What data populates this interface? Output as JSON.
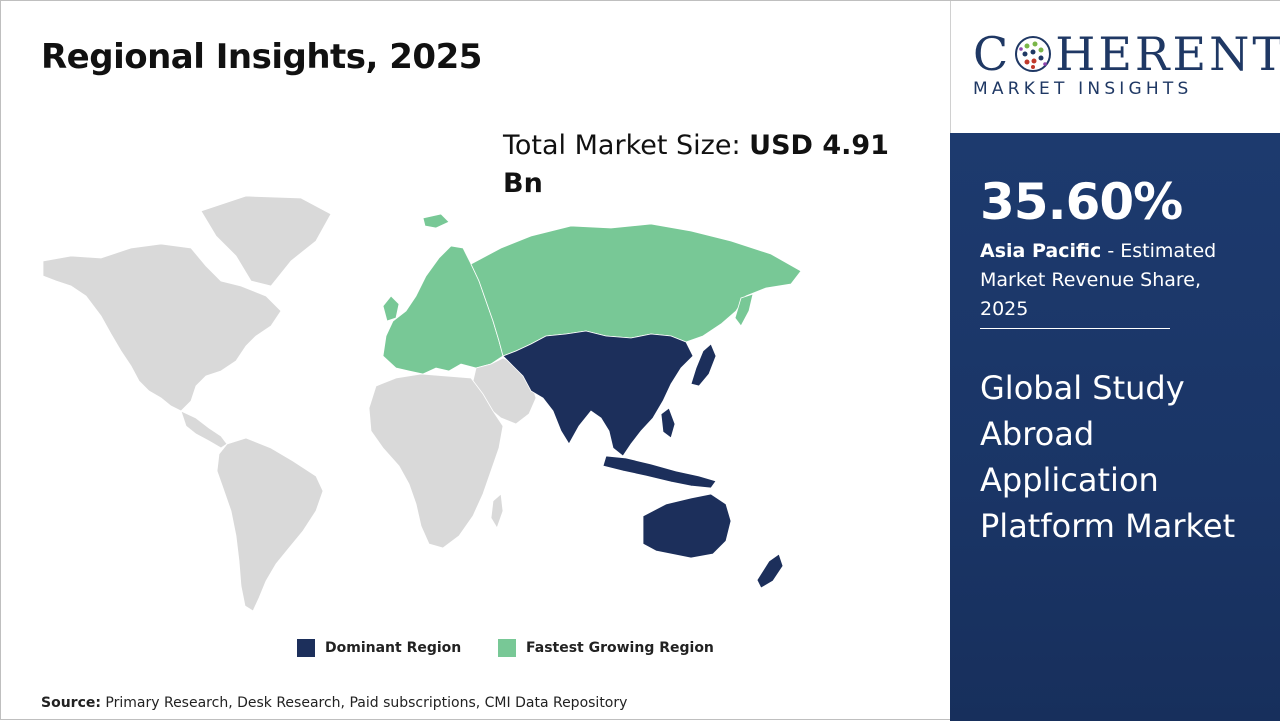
{
  "title": "Regional Insights, 2025",
  "market_size": {
    "label": "Total Market Size:",
    "value": "USD 4.91 Bn"
  },
  "map": {
    "regions": [
      {
        "name": "North America",
        "category": "other"
      },
      {
        "name": "Latin America",
        "category": "other"
      },
      {
        "name": "Europe",
        "category": "fastest"
      },
      {
        "name": "Russia & Central Asia",
        "category": "fastest"
      },
      {
        "name": "Middle East",
        "category": "other"
      },
      {
        "name": "Africa",
        "category": "other"
      },
      {
        "name": "Asia Pacific",
        "category": "dominant"
      }
    ],
    "colors": {
      "dominant": "#1c2f5b",
      "fastest": "#78c896",
      "other": "#d9d9d9"
    }
  },
  "legend": {
    "dominant_label": "Dominant Region",
    "fastest_label": "Fastest Growing Region"
  },
  "source": {
    "label": "Source:",
    "text": "Primary Research, Desk Research, Paid subscriptions, CMI Data Repository"
  },
  "logo": {
    "word_start": "C",
    "word_end": "HERENT",
    "subtitle": "MARKET INSIGHTS"
  },
  "highlight": {
    "share": "35.60%",
    "region": "Asia Pacific",
    "description": " - Estimated Market Revenue Share, 2025",
    "market_name": "Global Study Abroad Application Platform Market"
  }
}
